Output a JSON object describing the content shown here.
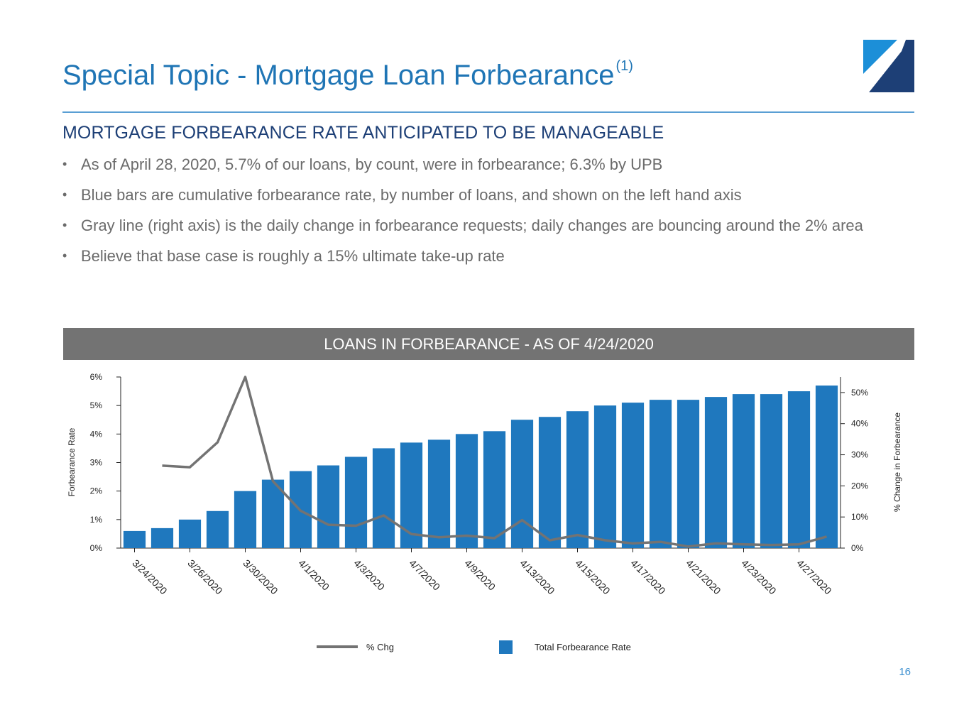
{
  "slide": {
    "title": "Special Topic - Mortgage Loan Forbearance",
    "title_footnote": "(1)",
    "subheading": "MORTGAGE FORBEARANCE RATE ANTICIPATED TO BE MANAGEABLE",
    "bullet_symbol": "•",
    "bullets": [
      "As of April 28, 2020, 5.7% of our loans, by count, were in forbearance; 6.3% by UPB",
      "Blue bars are cumulative forbearance rate, by number of loans, and shown on the left hand axis",
      "Gray line (right axis) is the daily change in forbearance requests; daily changes are bouncing around the 2% area",
      "Believe that base case is roughly a 15% ultimate take-up rate"
    ],
    "page_number": "16",
    "colors": {
      "title": "#1f75b5",
      "subheading": "#1d3f76",
      "bar": "#1f78be",
      "line": "#737373",
      "header_band": "#737373"
    },
    "logo_icon": "company-logo-icon"
  },
  "chart_data": {
    "type": "bar",
    "title": "LOANS IN FORBEARANCE - AS OF 4/24/2020",
    "ylabel": "Forbearance Rate",
    "y2label": "% Change in Forbearance",
    "ylim": [
      0,
      6
    ],
    "y2lim": [
      0,
      55
    ],
    "yticks": [
      "0%",
      "1%",
      "2%",
      "3%",
      "4%",
      "5%",
      "6%"
    ],
    "y2ticks": [
      "0%",
      "10%",
      "20%",
      "30%",
      "40%",
      "50%"
    ],
    "x_tick_labels": [
      "3/24/2020",
      "3/26/2020",
      "3/30/2020",
      "4/1/2020",
      "4/3/2020",
      "4/7/2020",
      "4/9/2020",
      "4/13/2020",
      "4/15/2020",
      "4/17/2020",
      "4/21/2020",
      "4/23/2020",
      "4/27/2020"
    ],
    "series": [
      {
        "name": "Total Forbearance Rate",
        "type": "bar",
        "axis": "left",
        "values": [
          0.6,
          0.7,
          1.0,
          1.3,
          2.0,
          2.4,
          2.7,
          2.9,
          3.2,
          3.5,
          3.7,
          3.8,
          4.0,
          4.1,
          4.5,
          4.6,
          4.8,
          5.0,
          5.1,
          5.2,
          5.2,
          5.3,
          5.4,
          5.4,
          5.5,
          5.7
        ]
      },
      {
        "name": "% Chg",
        "type": "line",
        "axis": "right",
        "values": [
          null,
          26.5,
          26,
          34,
          55,
          21.5,
          12,
          7.5,
          7.2,
          10.5,
          4.5,
          3.5,
          4,
          3.2,
          9,
          2.5,
          4.2,
          2.5,
          1.5,
          2,
          0.5,
          1.5,
          1.2,
          1,
          1.2,
          3.7
        ]
      }
    ],
    "legend": {
      "placement": "bottom-center",
      "line_label": "% Chg",
      "bar_label": "Total Forbearance Rate"
    },
    "grid": false
  }
}
